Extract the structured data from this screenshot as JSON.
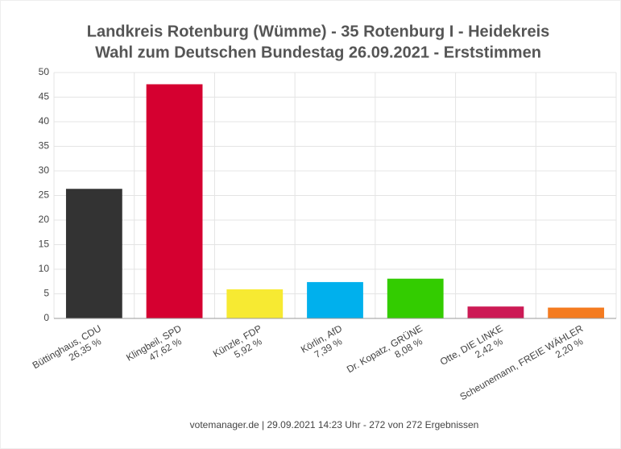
{
  "chart_data": {
    "type": "bar",
    "title": "Landkreis Rotenburg (Wümme) - 35 Rotenburg I - Heidekreis",
    "subtitle": "Wahl zum Deutschen Bundestag 26.09.2021  - Erststimmen",
    "categories": [
      "Büttinghaus, CDU",
      "Klingbeil, SPD",
      "Künzle, FDP",
      "Körlin, AfD",
      "Dr. Kopatz, GRÜNE",
      "Otte, DIE LINKE",
      "Scheunemann, FREIE WÄHLER"
    ],
    "values": [
      26.35,
      47.62,
      5.92,
      7.39,
      8.08,
      2.42,
      2.2
    ],
    "value_labels": [
      "26,35 %",
      "47,62 %",
      "5,92 %",
      "7,39 %",
      "8,08 %",
      "2,42 %",
      "2,20 %"
    ],
    "colors": [
      "#333333",
      "#d50030",
      "#f7ea32",
      "#00b0ed",
      "#33cc00",
      "#cc1a55",
      "#f47b20"
    ],
    "ylim": [
      0,
      50
    ],
    "yticks": [
      0,
      5,
      10,
      15,
      20,
      25,
      30,
      35,
      40,
      45,
      50
    ],
    "grid": true,
    "footer": "votemanager.de | 29.09.2021 14:23 Uhr - 272 von 272 Ergebnissen"
  }
}
